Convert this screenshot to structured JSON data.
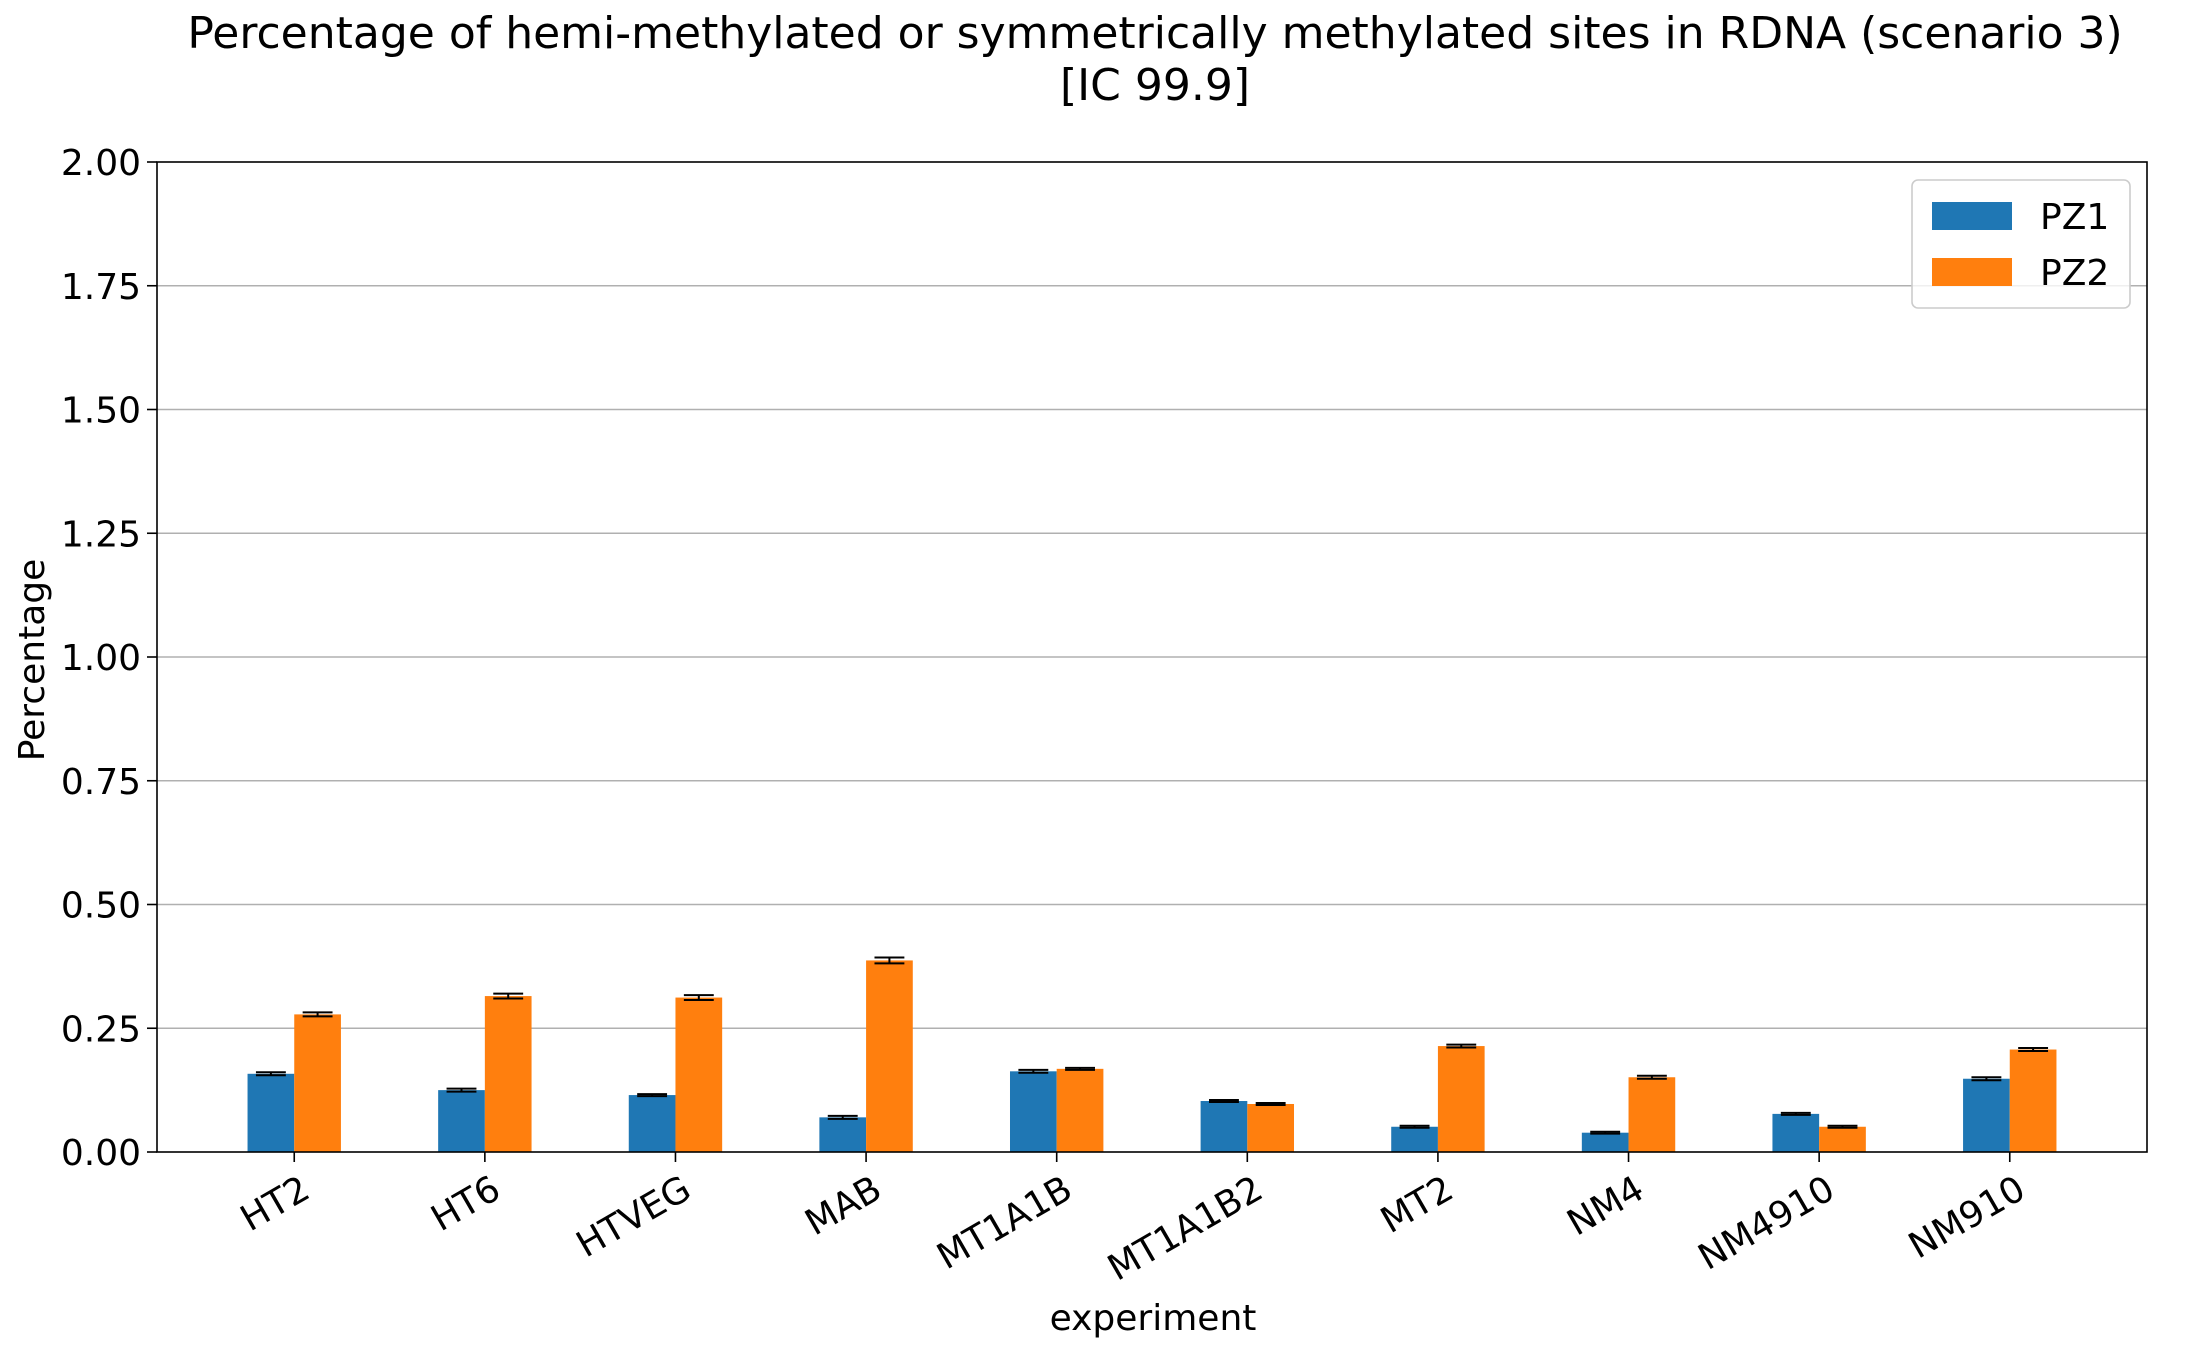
{
  "chart_data": {
    "type": "bar",
    "title": "Percentage of hemi-methylated or symmetrically methylated sites in RDNA (scenario 3)",
    "subtitle": "[IC 99.9]",
    "xlabel": "experiment",
    "ylabel": "Percentage",
    "ylim": [
      0,
      2.0
    ],
    "yticks": [
      "0.00",
      "0.25",
      "0.50",
      "0.75",
      "1.00",
      "1.25",
      "1.50",
      "1.75",
      "2.00"
    ],
    "grid": "horizontal",
    "legend_position": "top-right",
    "categories": [
      "HT2",
      "HT6",
      "HTVEG",
      "MAB",
      "MT1A1B",
      "MT1A1B2",
      "MT2",
      "NM4",
      "NM4910",
      "NM910"
    ],
    "series": [
      {
        "name": "PZ1",
        "color": "#1f77b4",
        "values": [
          0.158,
          0.125,
          0.115,
          0.07,
          0.163,
          0.103,
          0.051,
          0.039,
          0.077,
          0.148
        ],
        "errors": [
          0.003,
          0.003,
          0.002,
          0.003,
          0.003,
          0.002,
          0.002,
          0.002,
          0.002,
          0.003
        ]
      },
      {
        "name": "PZ2",
        "color": "#ff7f0e",
        "values": [
          0.278,
          0.315,
          0.312,
          0.387,
          0.168,
          0.097,
          0.214,
          0.151,
          0.051,
          0.207
        ],
        "errors": [
          0.004,
          0.005,
          0.005,
          0.006,
          0.002,
          0.002,
          0.003,
          0.003,
          0.002,
          0.003
        ]
      }
    ]
  }
}
